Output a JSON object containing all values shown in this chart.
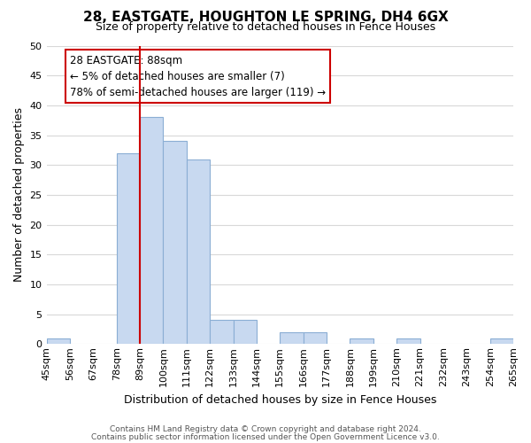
{
  "title": "28, EASTGATE, HOUGHTON LE SPRING, DH4 6GX",
  "subtitle": "Size of property relative to detached houses in Fence Houses",
  "xlabel": "Distribution of detached houses by size in Fence Houses",
  "ylabel": "Number of detached properties",
  "bin_edges": [
    45,
    56,
    67,
    78,
    89,
    100,
    111,
    122,
    133,
    144,
    155,
    166,
    177,
    188,
    199,
    210,
    221,
    232,
    243,
    254,
    265
  ],
  "bar_heights": [
    1,
    0,
    0,
    32,
    38,
    34,
    31,
    4,
    4,
    0,
    2,
    2,
    0,
    1,
    0,
    1,
    0,
    0,
    0,
    1
  ],
  "bar_color": "#c8d9f0",
  "bar_edgecolor": "#8baed4",
  "ylim": [
    0,
    50
  ],
  "vline_x": 89,
  "vline_color": "#cc0000",
  "annotation_title": "28 EASTGATE: 88sqm",
  "annotation_line1": "← 5% of detached houses are smaller (7)",
  "annotation_line2": "78% of semi-detached houses are larger (119) →",
  "annotation_box_color": "#ffffff",
  "annotation_box_edgecolor": "#cc0000",
  "footer1": "Contains HM Land Registry data © Crown copyright and database right 2024.",
  "footer2": "Contains public sector information licensed under the Open Government Licence v3.0.",
  "background_color": "#ffffff",
  "grid_color": "#d8d8d8",
  "title_fontsize": 11,
  "subtitle_fontsize": 9,
  "ylabel_fontsize": 9,
  "xlabel_fontsize": 9,
  "tick_fontsize": 8,
  "ann_fontsize": 8.5,
  "footer_fontsize": 6.5
}
